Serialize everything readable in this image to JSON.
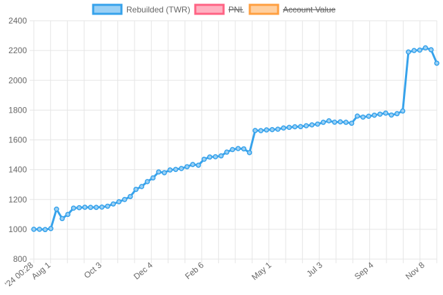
{
  "colors": {
    "series_line": "#36a2eb",
    "series_fill": "#9ad0f5",
    "pnl_stroke": "#ff6384",
    "pnl_fill": "#ffb1c1",
    "account_stroke": "#ff9f40",
    "account_fill": "#ffcf9f",
    "grid": "#e5e5e5",
    "text": "#666666"
  },
  "chart_data": {
    "type": "line",
    "legend_position": "top",
    "legend": [
      {
        "name": "Rebuilded (TWR)",
        "hidden": false
      },
      {
        "name": "PNL",
        "hidden": true
      },
      {
        "name": "Account Value",
        "hidden": true
      }
    ],
    "ylim": [
      800,
      2400
    ],
    "yticks": [
      800,
      1000,
      1200,
      1400,
      1600,
      1800,
      2000,
      2200,
      2400
    ],
    "xticks": [
      "'24 00:28",
      "Aug 1",
      "Oct 3",
      "Dec 4",
      "Feb 6",
      "May 1",
      "Jul 3",
      "Sep 4",
      "Nov 8"
    ],
    "grid": true,
    "series": [
      {
        "name": "Rebuilded (TWR)",
        "values": [
          1000,
          1000,
          998,
          1005,
          1135,
          1072,
          1100,
          1142,
          1145,
          1148,
          1147,
          1147,
          1149,
          1155,
          1170,
          1185,
          1200,
          1220,
          1268,
          1287,
          1320,
          1345,
          1385,
          1380,
          1398,
          1402,
          1408,
          1420,
          1435,
          1430,
          1470,
          1485,
          1487,
          1493,
          1518,
          1535,
          1542,
          1540,
          1515,
          1663,
          1662,
          1667,
          1669,
          1672,
          1680,
          1684,
          1688,
          1689,
          1695,
          1701,
          1706,
          1718,
          1728,
          1719,
          1721,
          1718,
          1712,
          1760,
          1753,
          1759,
          1766,
          1773,
          1780,
          1767,
          1776,
          1794,
          2190,
          2200,
          2203,
          2218,
          2205,
          2115
        ]
      }
    ]
  }
}
